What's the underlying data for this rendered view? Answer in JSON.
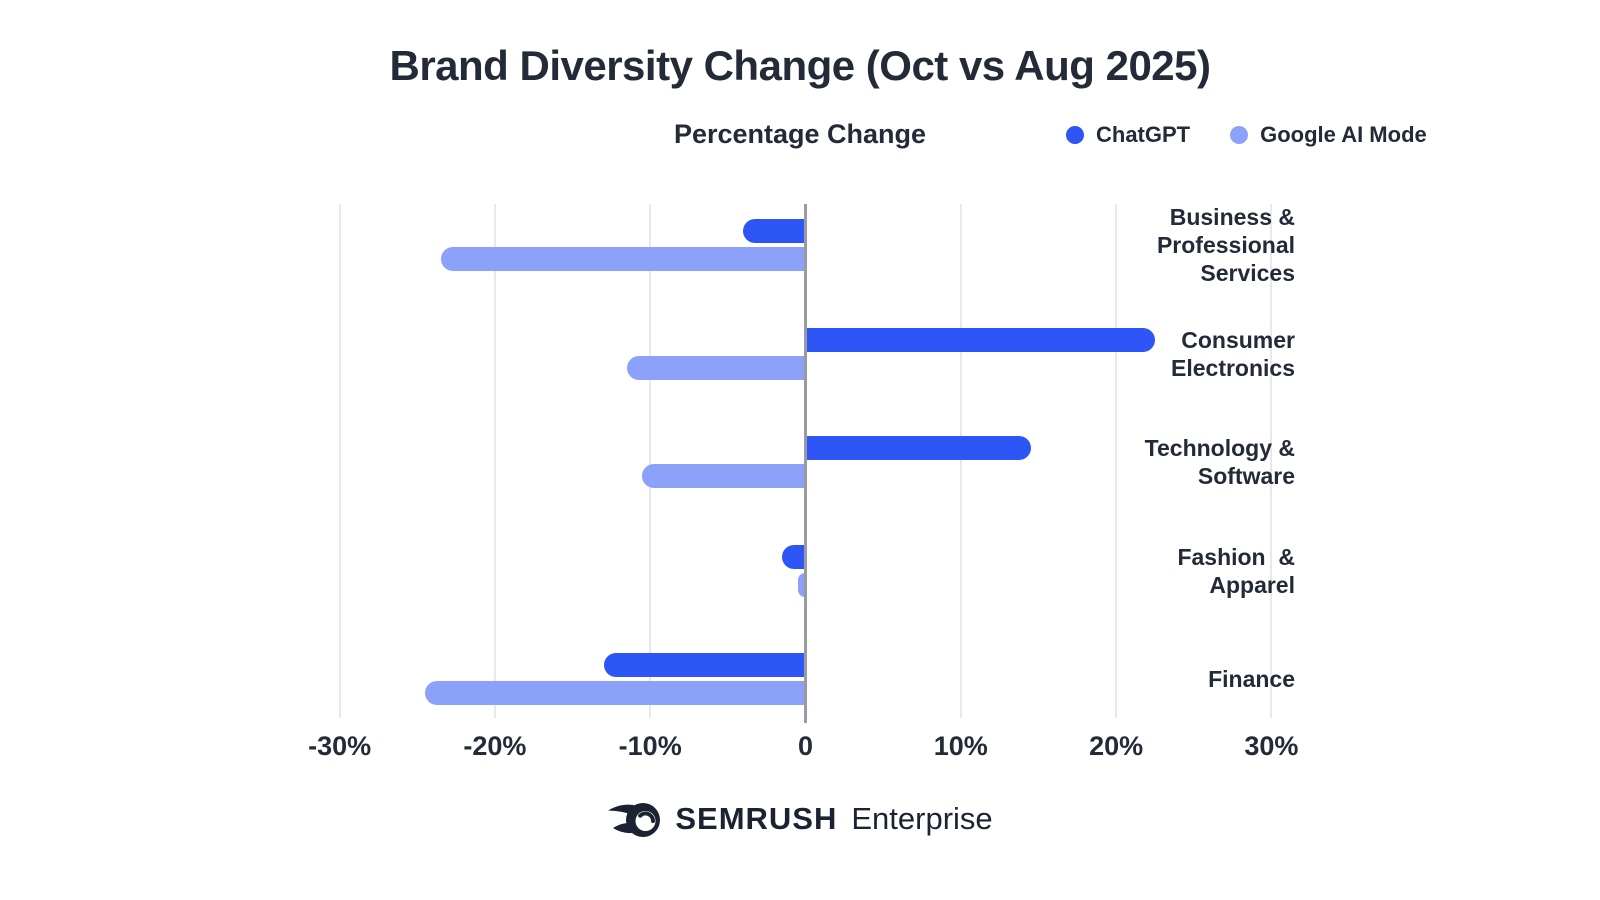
{
  "header": {
    "title": "Brand Diversity Change (Oct vs Aug 2025)",
    "subtitle": "Percentage Change"
  },
  "legend": [
    {
      "label": "ChatGPT",
      "color": "#2E55F6"
    },
    {
      "label": "Google AI Mode",
      "color": "#8BA1FA"
    }
  ],
  "chart_data": {
    "type": "bar",
    "orientation": "horizontal",
    "title": "Brand Diversity Change (Oct vs Aug 2025)",
    "axis_title": "Percentage Change",
    "categories": [
      "Business &\nProfessional\nServices",
      "Consumer\nElectronics",
      "Technology &\nSoftware",
      "Fashion  &\nApparel",
      "Finance"
    ],
    "series": [
      {
        "name": "ChatGPT",
        "color": "#2E55F6",
        "values": [
          -4,
          22.5,
          14.5,
          -1.5,
          -13
        ]
      },
      {
        "name": "Google AI Mode",
        "color": "#8BA1FA",
        "values": [
          -23.5,
          -11.5,
          -10.5,
          -0.5,
          -24.5
        ]
      }
    ],
    "unit": "%",
    "xlim": [
      -30,
      30
    ],
    "tick_values": [
      -30,
      -20,
      -10,
      0,
      10,
      20,
      30
    ],
    "tick_labels": [
      "-30%",
      "-20%",
      "-10%",
      "0",
      "10%",
      "20%",
      "30%"
    ],
    "grid": "vertical",
    "legend_position": "top-right"
  },
  "footer": {
    "brand": "SEMRUSH",
    "suffix": "Enterprise"
  }
}
